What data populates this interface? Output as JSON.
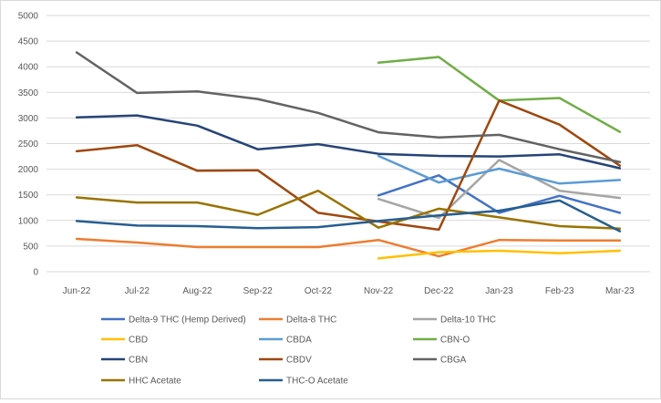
{
  "chart_data": {
    "type": "line",
    "title": "",
    "xlabel": "",
    "ylabel": "",
    "ylim": [
      0,
      5000
    ],
    "yticks": [
      0,
      500,
      1000,
      1500,
      2000,
      2500,
      3000,
      3500,
      4000,
      4500,
      5000
    ],
    "grid": true,
    "legend_position": "bottom",
    "categories": [
      "Jun-22",
      "Jul-22",
      "Aug-22",
      "Sep-22",
      "Oct-22",
      "Nov-22",
      "Dec-22",
      "Jan-23",
      "Feb-23",
      "Mar-23"
    ],
    "series": [
      {
        "name": "Delta-9 THC (Hemp Derived)",
        "color": "#4472C4",
        "values": [
          null,
          null,
          null,
          null,
          null,
          1490,
          1880,
          1150,
          1480,
          1150
        ]
      },
      {
        "name": "Delta-8 THC",
        "color": "#ED7D31",
        "values": [
          640,
          570,
          480,
          480,
          480,
          620,
          300,
          620,
          610,
          610
        ]
      },
      {
        "name": "Delta-10 THC",
        "color": "#A5A5A5",
        "values": [
          null,
          null,
          null,
          null,
          null,
          1420,
          1050,
          2180,
          1580,
          1440
        ]
      },
      {
        "name": "CBD",
        "color": "#FFC000",
        "values": [
          null,
          null,
          null,
          null,
          null,
          260,
          380,
          410,
          360,
          410
        ]
      },
      {
        "name": "CBDA",
        "color": "#5B9BD5",
        "values": [
          null,
          null,
          null,
          null,
          null,
          2260,
          1740,
          2010,
          1720,
          1790
        ]
      },
      {
        "name": "CBN-O",
        "color": "#70AD47",
        "values": [
          null,
          null,
          null,
          null,
          null,
          4080,
          4190,
          3340,
          3390,
          2730
        ]
      },
      {
        "name": "CBN",
        "color": "#264478",
        "values": [
          3010,
          3050,
          2850,
          2390,
          2490,
          2300,
          2260,
          2250,
          2290,
          2020
        ]
      },
      {
        "name": "CBDV",
        "color": "#9E480E",
        "values": [
          2350,
          2470,
          1970,
          1980,
          1150,
          980,
          820,
          3340,
          2870,
          2070
        ]
      },
      {
        "name": "CBGA",
        "color": "#636363",
        "values": [
          4280,
          3490,
          3520,
          3370,
          3100,
          2720,
          2620,
          2670,
          2390,
          2140
        ]
      },
      {
        "name": "HHC Acetate",
        "color": "#997300",
        "values": [
          1450,
          1350,
          1350,
          1110,
          1580,
          860,
          1230,
          1060,
          890,
          840
        ]
      },
      {
        "name": "THC-O Acetate",
        "color": "#255E91",
        "values": [
          990,
          900,
          890,
          850,
          870,
          990,
          1100,
          1190,
          1390,
          790
        ]
      }
    ]
  }
}
